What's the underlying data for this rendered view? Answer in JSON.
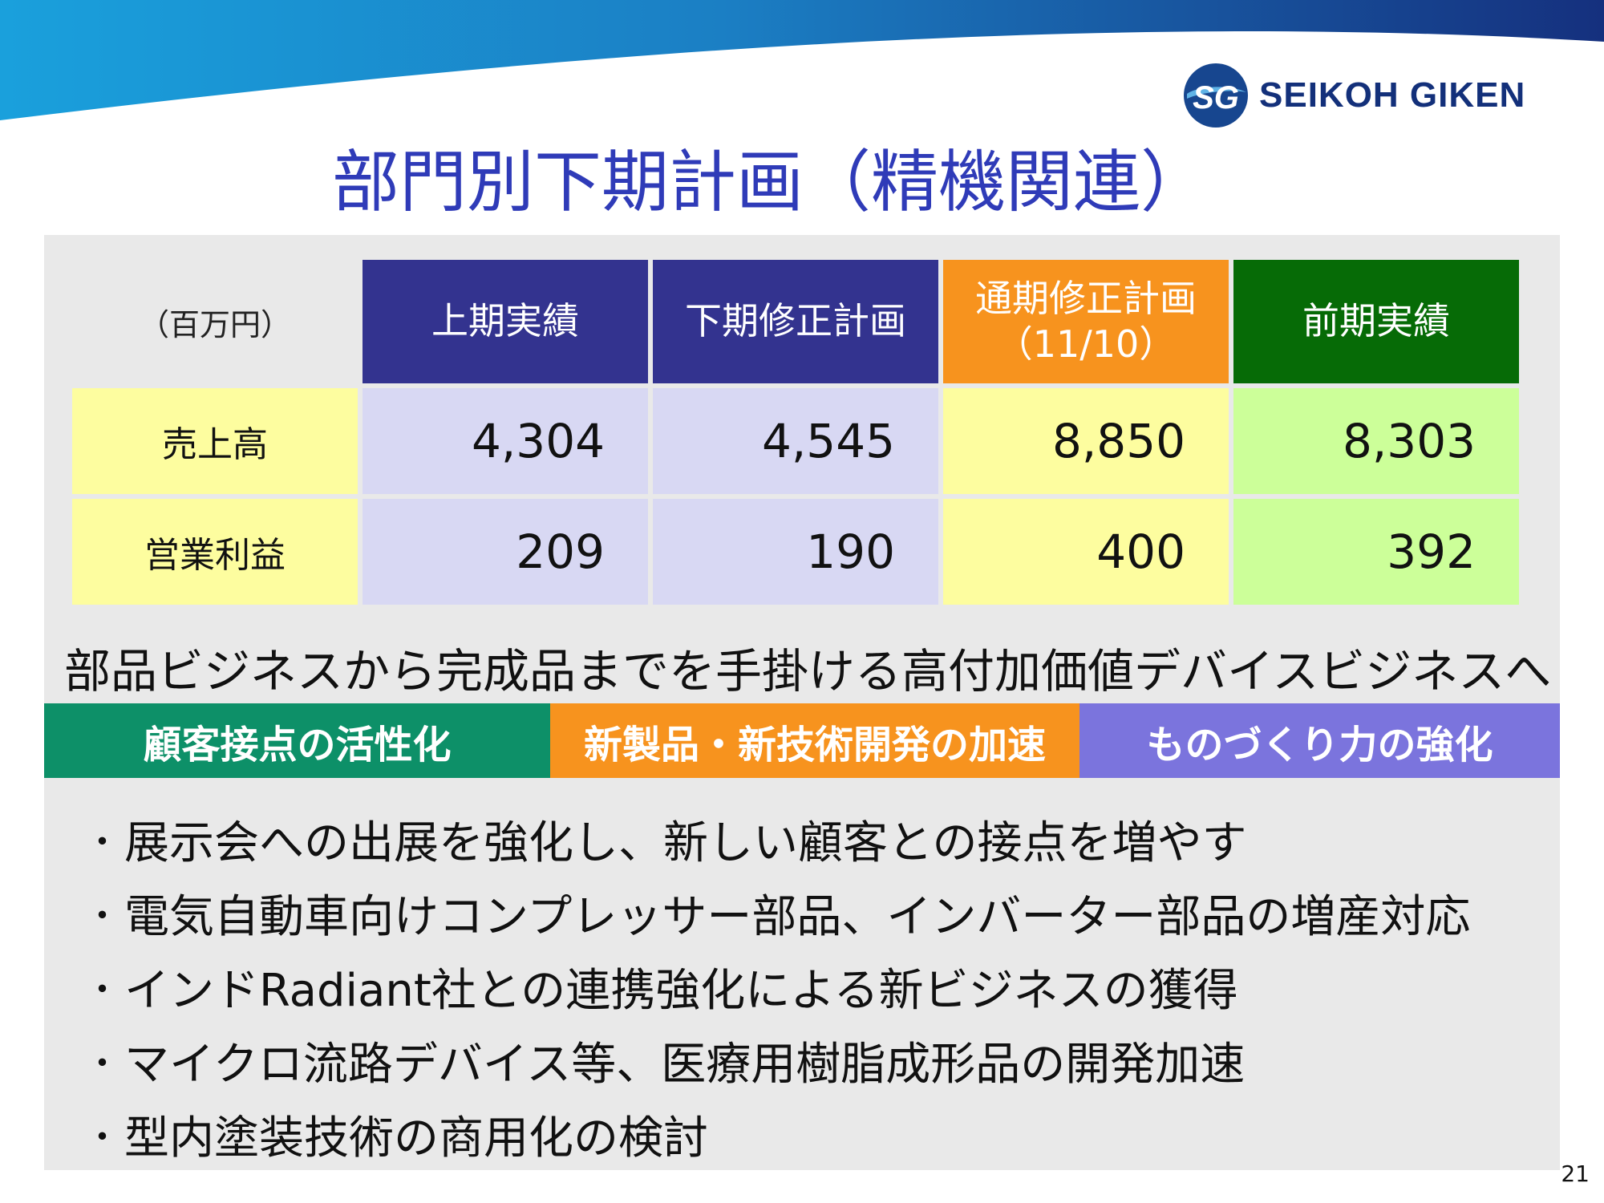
{
  "brand": {
    "name": "SEIKOH GIKEN",
    "mark": "SG"
  },
  "colors": {
    "title": "#2f3bb8",
    "header_blue": "#33338f",
    "header_orange": "#f7931e",
    "header_green": "#066b06",
    "cell_blue": "#d8d8f3",
    "cell_yellow": "#fdfd9f",
    "cell_green": "#ccff99",
    "pillar_green": "#0d9068",
    "pillar_orange": "#f7931e",
    "pillar_purple": "#7b74dd"
  },
  "title": "部門別下期計画（精機関連）",
  "table": {
    "unit_label": "（百万円）",
    "headers": [
      {
        "line1": "上期実績",
        "line2": ""
      },
      {
        "line1": "下期修正計画",
        "line2": ""
      },
      {
        "line1": "通期修正計画",
        "line2": "（11/10）"
      },
      {
        "line1": "前期実績",
        "line2": ""
      }
    ],
    "rows": [
      {
        "label": "売上高",
        "values": [
          "4,304",
          "4,545",
          "8,850",
          "8,303"
        ]
      },
      {
        "label": "営業利益",
        "values": [
          "209",
          "190",
          "400",
          "392"
        ]
      }
    ]
  },
  "headline": "部品ビジネスから完成品までを手掛ける高付加価値デバイスビジネスへ",
  "pillars": [
    "顧客接点の活性化",
    "新製品・新技術開発の加速",
    "ものづくり力の強化"
  ],
  "bullet_marker": "・",
  "bullets": [
    "展示会への出展を強化し、新しい顧客との接点を増やす",
    "電気自動車向けコンプレッサー部品、インバーター部品の増産対応",
    "インドRadiant社との連携強化による新ビジネスの獲得",
    "マイクロ流路デバイス等、医療用樹脂成形品の開発加速",
    "型内塗装技術の商用化の検討"
  ],
  "page_number": "21"
}
